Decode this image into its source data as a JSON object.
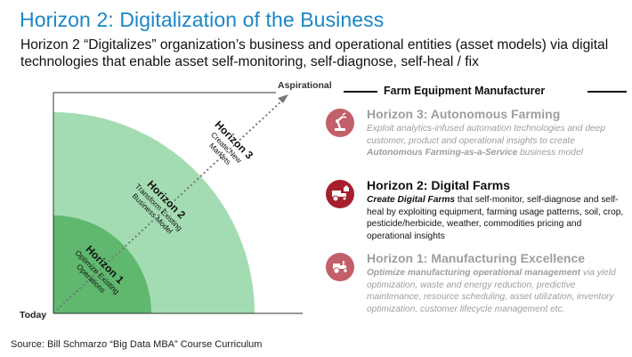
{
  "title": "Horizon 2: Digitalization of the Business",
  "subtitle": "Horizon 2 “Digitalizes” organization’s business and operational entities (asset models) via digital technologies that enable asset self-monitoring, self-diagnose, self-heal / fix",
  "source": "Source: Bill Schmarzo “Big Data MBA” Course Curriculum",
  "diagram": {
    "axis_end_label": "Aspirational",
    "axis_start_label": "Today",
    "horizons": [
      {
        "title": "Horizon 1",
        "lines": [
          "Optimize Existing",
          "Operations"
        ]
      },
      {
        "title": "Horizon 2",
        "lines": [
          "Transform Existing",
          "Business Model"
        ]
      },
      {
        "title": "Horizon 3",
        "lines": [
          "Create New",
          "Markets"
        ]
      }
    ]
  },
  "panel": {
    "title": "Farm Equipment Manufacturer",
    "items": [
      {
        "heading": "Horizon 3: Autonomous Farming",
        "desc_pre": "Exploit analytics-infused automation technologies and deep customer, product and operational insights to create ",
        "desc_em": "Autonomous Farming-as-a-Service",
        "desc_post": " business model",
        "icon": "robot-arm-icon"
      },
      {
        "heading": "Horizon 2: Digital Farms",
        "desc_em": "Create Digital Farms",
        "desc_post": " that self-monitor, self-diagnose and self-heal by exploiting equipment, farming usage patterns, soil, crop, pesticide/herbicide, weather, commodities pricing and operational insights",
        "icon": "tractor-farm-icon"
      },
      {
        "heading": "Horizon 1: Manufacturing Excellence",
        "desc_em": "Optimize manufacturing operational management",
        "desc_post": " via yield optimization, waste and energy reduction, predictive maintenance, resource scheduling, asset utilization, inventory optimization, customer lifecycle management etc.",
        "icon": "tractor-icon"
      }
    ]
  },
  "colors": {
    "title_blue": "#1a86c8",
    "horizon1_green": "#5fb86e",
    "horizon2_green": "#a3dcb3",
    "icon_red": "#a51f2d"
  }
}
